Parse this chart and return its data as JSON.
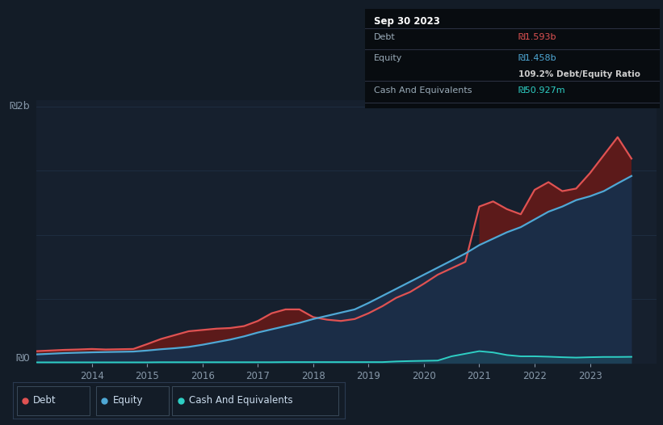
{
  "bg_color": "#131c27",
  "plot_bg_color": "#16202e",
  "grid_color": "#1e2d40",
  "debt_color": "#e05252",
  "equity_color": "#4fa8d5",
  "cash_color": "#2ecfc4",
  "debt_fill_color": "#5c1a1a",
  "equity_fill_color": "#1b2d47",
  "ylabel_2b": "₪2b",
  "ylabel_0": "₪0",
  "tooltip_title": "Sep 30 2023",
  "tooltip_debt_label": "Debt",
  "tooltip_debt_value": "₪1.593b",
  "tooltip_equity_label": "Equity",
  "tooltip_equity_value": "₪1.458b",
  "tooltip_ratio": "109.2% Debt/Equity Ratio",
  "tooltip_cash_label": "Cash And Equivalents",
  "tooltip_cash_value": "₪50.927m",
  "legend_debt": "Debt",
  "legend_equity": "Equity",
  "legend_cash": "Cash And Equivalents",
  "x_years": [
    2013.0,
    2013.25,
    2013.5,
    2013.75,
    2014.0,
    2014.25,
    2014.5,
    2014.75,
    2015.0,
    2015.25,
    2015.5,
    2015.75,
    2016.0,
    2016.25,
    2016.5,
    2016.75,
    2017.0,
    2017.25,
    2017.5,
    2017.75,
    2018.0,
    2018.25,
    2018.5,
    2018.75,
    2019.0,
    2019.25,
    2019.5,
    2019.75,
    2020.0,
    2020.25,
    2020.5,
    2020.75,
    2021.0,
    2021.25,
    2021.5,
    2021.75,
    2022.0,
    2022.25,
    2022.5,
    2022.75,
    2023.0,
    2023.25,
    2023.5,
    2023.75
  ],
  "debt": [
    0.095,
    0.1,
    0.105,
    0.108,
    0.112,
    0.108,
    0.11,
    0.112,
    0.15,
    0.19,
    0.22,
    0.25,
    0.26,
    0.27,
    0.275,
    0.29,
    0.33,
    0.39,
    0.42,
    0.42,
    0.36,
    0.34,
    0.33,
    0.345,
    0.39,
    0.445,
    0.51,
    0.555,
    0.62,
    0.69,
    0.74,
    0.79,
    1.22,
    1.26,
    1.2,
    1.16,
    1.35,
    1.41,
    1.34,
    1.36,
    1.48,
    1.62,
    1.76,
    1.593
  ],
  "equity": [
    0.07,
    0.075,
    0.08,
    0.083,
    0.086,
    0.088,
    0.09,
    0.092,
    0.1,
    0.11,
    0.118,
    0.128,
    0.145,
    0.165,
    0.185,
    0.21,
    0.24,
    0.265,
    0.29,
    0.315,
    0.345,
    0.37,
    0.395,
    0.42,
    0.47,
    0.525,
    0.58,
    0.635,
    0.69,
    0.745,
    0.8,
    0.855,
    0.92,
    0.97,
    1.02,
    1.06,
    1.12,
    1.18,
    1.22,
    1.27,
    1.3,
    1.34,
    1.4,
    1.458
  ],
  "cash": [
    0.008,
    0.008,
    0.008,
    0.008,
    0.008,
    0.008,
    0.008,
    0.008,
    0.008,
    0.009,
    0.009,
    0.009,
    0.009,
    0.009,
    0.009,
    0.009,
    0.009,
    0.009,
    0.01,
    0.01,
    0.01,
    0.01,
    0.01,
    0.01,
    0.01,
    0.01,
    0.015,
    0.018,
    0.02,
    0.022,
    0.055,
    0.075,
    0.095,
    0.085,
    0.065,
    0.055,
    0.055,
    0.052,
    0.048,
    0.045,
    0.048,
    0.05,
    0.05,
    0.051
  ],
  "ylim": [
    0,
    2.05
  ],
  "xlim": [
    2013.0,
    2024.2
  ],
  "xticks": [
    2014,
    2015,
    2016,
    2017,
    2018,
    2019,
    2020,
    2021,
    2022,
    2023
  ],
  "y2b_value": 2.0
}
